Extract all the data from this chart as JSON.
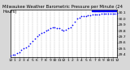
{
  "title": "Milwaukee Weather Barometric Pressure per Minute (24 Hours)",
  "background_color": "#d8d8d8",
  "plot_background": "#ffffff",
  "grid_color": "#aaaaaa",
  "dot_color": "#0000ff",
  "highlight_color": "#0000ff",
  "border_color": "#000000",
  "ylim": [
    29.35,
    30.15
  ],
  "xlim": [
    0,
    1440
  ],
  "ytick_labels": [
    "29.4",
    "29.5",
    "29.6",
    "29.7",
    "29.8",
    "29.9",
    "30.0",
    "30.1"
  ],
  "ytick_values": [
    29.4,
    29.5,
    29.6,
    29.7,
    29.8,
    29.9,
    30.0,
    30.1
  ],
  "xtick_values": [
    0,
    60,
    120,
    180,
    240,
    300,
    360,
    420,
    480,
    540,
    600,
    660,
    720,
    780,
    840,
    900,
    960,
    1020,
    1080,
    1140,
    1200,
    1260,
    1320,
    1380,
    1440
  ],
  "xtick_labels": [
    "12",
    "1",
    "2",
    "3",
    "4",
    "5",
    "6",
    "7",
    "8",
    "9",
    "10",
    "11",
    "12",
    "1",
    "2",
    "3",
    "4",
    "5",
    "6",
    "7",
    "8",
    "9",
    "10",
    "11",
    "12"
  ],
  "data_x": [
    0,
    30,
    60,
    90,
    120,
    150,
    180,
    210,
    240,
    270,
    300,
    330,
    360,
    390,
    420,
    450,
    480,
    510,
    540,
    570,
    600,
    630,
    660,
    690,
    720,
    750,
    780,
    810,
    840,
    870,
    900,
    930,
    960,
    990,
    1020,
    1050,
    1080,
    1110,
    1140,
    1170,
    1200,
    1230,
    1260,
    1290,
    1320,
    1350,
    1380,
    1410,
    1440
  ],
  "data_y": [
    29.38,
    29.39,
    29.4,
    29.42,
    29.44,
    29.47,
    29.5,
    29.52,
    29.55,
    29.58,
    29.62,
    29.66,
    29.7,
    29.73,
    29.76,
    29.78,
    29.8,
    29.82,
    29.84,
    29.86,
    29.86,
    29.84,
    29.84,
    29.82,
    29.8,
    29.82,
    29.84,
    29.86,
    29.9,
    29.95,
    30.0,
    30.02,
    30.04,
    30.04,
    30.05,
    30.06,
    30.06,
    30.07,
    30.07,
    30.07,
    30.07,
    30.08,
    30.08,
    30.08,
    30.08,
    30.09,
    30.09,
    30.09,
    30.09
  ],
  "highlight_x_start": 1100,
  "vgrid_positions": [
    60,
    120,
    180,
    240,
    300,
    360,
    420,
    480,
    540,
    600,
    660,
    720,
    780,
    840,
    900,
    960,
    1020,
    1080,
    1140,
    1200,
    1260,
    1320,
    1380
  ],
  "dot_size": 1.5,
  "title_fontsize": 3.8,
  "tick_fontsize": 3.2,
  "title_color": "#000000",
  "highlight_bar_y": 30.135,
  "highlight_bar_height": 0.018
}
